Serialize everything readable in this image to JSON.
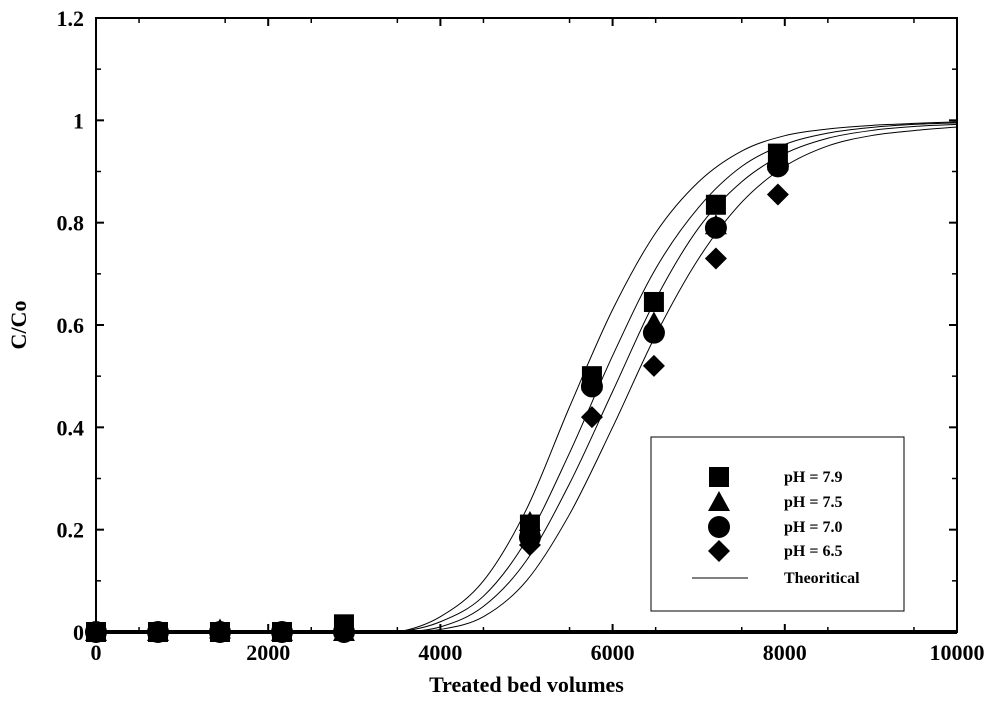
{
  "chart_data": {
    "type": "scatter",
    "xlabel": "Treated bed volumes",
    "ylabel": "C/Co",
    "xlim": [
      0,
      10000
    ],
    "ylim": [
      0,
      1.2
    ],
    "x_ticks": [
      0,
      2000,
      4000,
      6000,
      8000,
      10000
    ],
    "x_tick_labels": [
      "0",
      "2000",
      "4000",
      "6000",
      "8000",
      "10000"
    ],
    "y_ticks": [
      0,
      0.2,
      0.4,
      0.6,
      0.8,
      1.0,
      1.2
    ],
    "y_tick_labels": [
      "0",
      "0.2",
      "0.4",
      "0.6",
      "0.8",
      "1",
      "1.2"
    ],
    "grid": false,
    "legend_position": "bottom-right",
    "series": [
      {
        "name": "pH = 7.9",
        "marker": "square",
        "x": [
          0,
          720,
          1440,
          2160,
          2880,
          5040,
          5760,
          6480,
          7200,
          7920
        ],
        "y": [
          0,
          0,
          0,
          0,
          0.015,
          0.21,
          0.5,
          0.645,
          0.835,
          0.935
        ]
      },
      {
        "name": "pH = 7.5",
        "marker": "triangle",
        "x": [
          0,
          720,
          1440,
          2160,
          2880,
          5040,
          5760,
          6480,
          7200,
          7920
        ],
        "y": [
          0,
          0,
          0.005,
          0,
          0,
          0.215,
          0.49,
          0.605,
          0.795,
          0.92
        ]
      },
      {
        "name": "pH = 7.0",
        "marker": "circle",
        "x": [
          0,
          720,
          1440,
          2160,
          2880,
          5040,
          5760,
          6480,
          7200,
          7920
        ],
        "y": [
          0,
          0,
          0,
          0,
          0,
          0.185,
          0.48,
          0.585,
          0.79,
          0.91
        ]
      },
      {
        "name": "pH = 6.5",
        "marker": "diamond",
        "x": [
          0,
          720,
          1440,
          2160,
          2880,
          5040,
          5760,
          6480,
          7200,
          7920
        ],
        "y": [
          0,
          0,
          0,
          0,
          0,
          0.17,
          0.42,
          0.52,
          0.73,
          0.855
        ]
      },
      {
        "name": "Theoritical",
        "marker": "line",
        "curves": [
          {
            "x": [
              3000,
              3500,
              4000,
              4500,
              5000,
              5500,
              6000,
              6500,
              7000,
              7500,
              8000,
              8500,
              9000,
              9500,
              10000
            ],
            "y": [
              0,
              0,
              0.03,
              0.1,
              0.24,
              0.44,
              0.63,
              0.78,
              0.88,
              0.94,
              0.97,
              0.983,
              0.99,
              0.994,
              0.997
            ]
          },
          {
            "x": [
              3000,
              3500,
              4000,
              4500,
              5000,
              5500,
              6000,
              6500,
              7000,
              7500,
              8000,
              8500,
              9000,
              9500,
              10000
            ],
            "y": [
              0,
              0,
              0.02,
              0.07,
              0.18,
              0.35,
              0.54,
              0.71,
              0.83,
              0.91,
              0.953,
              0.975,
              0.986,
              0.992,
              0.995
            ]
          },
          {
            "x": [
              3000,
              3500,
              4000,
              4500,
              5000,
              5500,
              6000,
              6500,
              7000,
              7500,
              8000,
              8500,
              9000,
              9500,
              10000
            ],
            "y": [
              0,
              0,
              0.01,
              0.05,
              0.14,
              0.29,
              0.47,
              0.65,
              0.79,
              0.88,
              0.935,
              0.965,
              0.98,
              0.988,
              0.992
            ]
          },
          {
            "x": [
              3000,
              3500,
              4000,
              4500,
              5000,
              5500,
              6000,
              6500,
              7000,
              7500,
              8000,
              8500,
              9000,
              9500,
              10000
            ],
            "y": [
              0,
              0,
              0.005,
              0.03,
              0.1,
              0.23,
              0.4,
              0.58,
              0.73,
              0.84,
              0.91,
              0.95,
              0.97,
              0.98,
              0.987
            ]
          }
        ]
      }
    ]
  }
}
